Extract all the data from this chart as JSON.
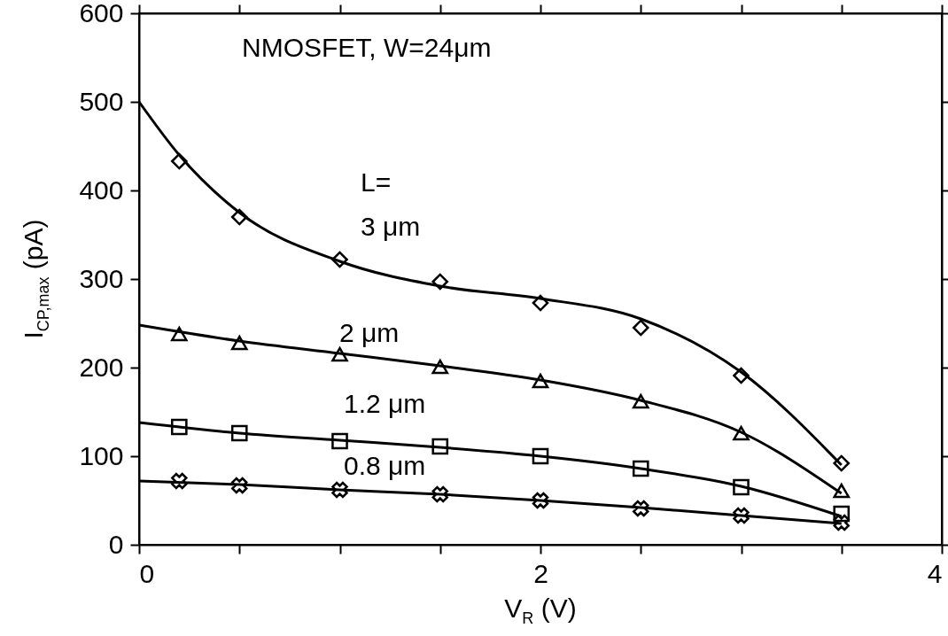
{
  "chart_data": {
    "type": "scatter",
    "xlabel": "V$_{R}$ (V)",
    "ylabel": "I$_{CP,max}$ (pA)",
    "annotations": [
      "NMOSFET, W=24μm",
      "L=",
      "3 μm",
      "2 μm",
      "1.2 μm",
      "0.8 μm"
    ],
    "x": [
      0.2,
      0.5,
      1,
      1.5,
      2,
      2.5,
      3,
      3.5
    ],
    "series": [
      {
        "type": "scatter",
        "marker": "diamond",
        "color": "#000000",
        "values": [
          433,
          370,
          322,
          297,
          273,
          245,
          191,
          92
        ]
      },
      {
        "type": "scatter",
        "marker": "triangle",
        "color": "#000000",
        "values": [
          238,
          228,
          215,
          201,
          185,
          162,
          126,
          61
        ]
      },
      {
        "type": "scatter",
        "marker": "square",
        "color": "#000000",
        "values": [
          133,
          126,
          117,
          111,
          100,
          86,
          65,
          35
        ]
      },
      {
        "type": "scatter",
        "marker": "cross",
        "color": "#000000",
        "values": [
          72,
          67,
          62,
          57,
          50,
          41,
          33,
          25
        ]
      },
      {
        "type": "line",
        "marker": "none",
        "line_style": "solid",
        "color": "#000000",
        "x": [
          0,
          0.2,
          0.5,
          1,
          1.5,
          2,
          2.5,
          3,
          3.5
        ],
        "values": [
          500,
          440,
          375,
          320,
          292,
          278,
          255,
          195,
          90
        ]
      },
      {
        "type": "line",
        "marker": "none",
        "line_style": "solid",
        "color": "#000000",
        "x": [
          0,
          0.5,
          1,
          1.5,
          2,
          2.5,
          3,
          3.5
        ],
        "values": [
          248,
          230,
          216,
          202,
          186,
          163,
          127,
          58
        ]
      },
      {
        "type": "line",
        "marker": "none",
        "line_style": "solid",
        "color": "#000000",
        "x": [
          0,
          0.5,
          1,
          1.5,
          2,
          2.5,
          3,
          3.5
        ],
        "values": [
          138,
          126,
          118,
          110,
          100,
          86,
          66,
          32
        ]
      },
      {
        "type": "line",
        "marker": "none",
        "line_style": "solid",
        "color": "#000000",
        "x": [
          0,
          0.5,
          1,
          1.5,
          2,
          2.5,
          3,
          3.5
        ],
        "values": [
          72,
          68,
          62,
          57,
          50,
          42,
          33,
          24
        ]
      }
    ],
    "xlim": [
      0,
      4
    ],
    "xticks": [
      0,
      {
        "value": 0.5,
        "label": null
      },
      {
        "value": 1,
        "label": null
      },
      {
        "value": 1.5,
        "label": null
      },
      2,
      {
        "value": 2.5,
        "label": null
      },
      {
        "value": 3,
        "label": null
      },
      {
        "value": 3.5,
        "label": null
      },
      4
    ],
    "ylim": [
      0,
      600
    ],
    "yticks": [
      0,
      100,
      200,
      300,
      400,
      500,
      600
    ]
  }
}
